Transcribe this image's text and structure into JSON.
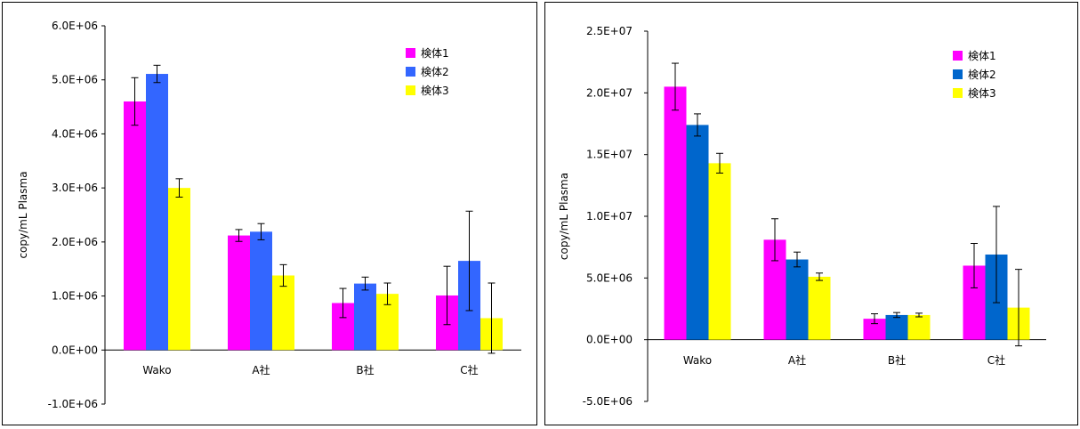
{
  "chart_data": [
    {
      "type": "bar",
      "ylabel": "copy/mL Plasma",
      "xlabel": "",
      "title": "",
      "categories": [
        "Wako",
        "A社",
        "B社",
        "C社"
      ],
      "ylim": [
        -1000000,
        6000000
      ],
      "yticks": [
        -1000000,
        0,
        1000000,
        2000000,
        3000000,
        4000000,
        5000000,
        6000000
      ],
      "ytick_labels": [
        "-1.0E+06",
        "0.0E+00",
        "1.0E+06",
        "2.0E+06",
        "3.0E+06",
        "4.0E+06",
        "5.0E+06",
        "6.0E+06"
      ],
      "legend_position": "top-right",
      "grid": false,
      "series": [
        {
          "name": "検体1",
          "color": "#ff00ff",
          "values": [
            4600000,
            2120000,
            870000,
            1010000
          ],
          "errors": [
            440000,
            110000,
            270000,
            540000
          ]
        },
        {
          "name": "検体2",
          "color": "#3366ff",
          "values": [
            5110000,
            2190000,
            1230000,
            1650000
          ],
          "errors": [
            160000,
            150000,
            120000,
            920000
          ]
        },
        {
          "name": "検体3",
          "color": "#ffff00",
          "values": [
            3000000,
            1380000,
            1040000,
            590000
          ],
          "errors": [
            170000,
            200000,
            200000,
            650000
          ]
        }
      ]
    },
    {
      "type": "bar",
      "ylabel": "copy/mL Plasma",
      "xlabel": "",
      "title": "",
      "categories": [
        "Wako",
        "A社",
        "B社",
        "C社"
      ],
      "ylim": [
        -5000000,
        25000000
      ],
      "yticks": [
        -5000000,
        0,
        5000000,
        10000000,
        15000000,
        20000000,
        25000000
      ],
      "ytick_labels": [
        "-5.0E+06",
        "0.0E+00",
        "5.0E+06",
        "1.0E+07",
        "1.5E+07",
        "2.0E+07",
        "2.5E+07"
      ],
      "legend_position": "top-right",
      "grid": false,
      "series": [
        {
          "name": "検体1",
          "color": "#ff00ff",
          "values": [
            20500000,
            8100000,
            1700000,
            6000000
          ],
          "errors": [
            1900000,
            1700000,
            400000,
            1800000
          ]
        },
        {
          "name": "検体2",
          "color": "#0066cc",
          "values": [
            17400000,
            6500000,
            2000000,
            6900000
          ],
          "errors": [
            900000,
            600000,
            200000,
            3900000
          ]
        },
        {
          "name": "検体3",
          "color": "#ffff00",
          "values": [
            14300000,
            5100000,
            2000000,
            2600000
          ],
          "errors": [
            800000,
            300000,
            150000,
            3100000
          ]
        }
      ]
    }
  ]
}
